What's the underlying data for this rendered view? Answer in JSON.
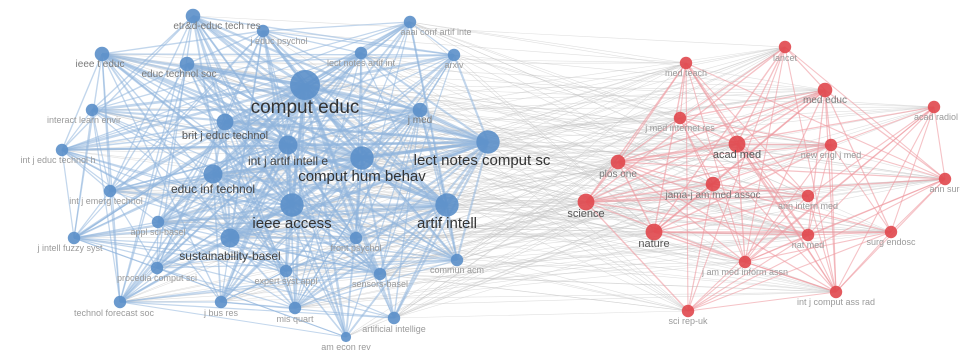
{
  "colors": {
    "blue_node": "#5b8fc9",
    "red_node": "#e0474c",
    "blue_edge": "#8fb4dc",
    "red_edge": "#ee9aa0",
    "gray_edge": "#c4c4c4",
    "label_major": "#333333",
    "label_minor": "#9a9a9a"
  },
  "clusters": [
    {
      "name": "",
      "color": "blue"
    },
    {
      "name": "",
      "color": "red"
    }
  ],
  "nodes": [
    {
      "id": "b1",
      "label": "comput educ",
      "cluster": 0,
      "weight": 10
    },
    {
      "id": "b2",
      "label": "lect notes comput sc",
      "cluster": 0,
      "weight": 7
    },
    {
      "id": "b3",
      "label": "comput hum behav",
      "cluster": 0,
      "weight": 7
    },
    {
      "id": "b4",
      "label": "ieee access",
      "cluster": 0,
      "weight": 7
    },
    {
      "id": "b5",
      "label": "artif intell",
      "cluster": 0,
      "weight": 7
    },
    {
      "id": "b6",
      "label": "int j artif intell e",
      "cluster": 0,
      "weight": 5
    },
    {
      "id": "b7",
      "label": "educ inf technol",
      "cluster": 0,
      "weight": 5
    },
    {
      "id": "b8",
      "label": "sustainability-basel",
      "cluster": 0,
      "weight": 5
    },
    {
      "id": "b9",
      "label": "brit j educ technol",
      "cluster": 0,
      "weight": 4
    },
    {
      "id": "b10",
      "label": "etr&d-educ tech res",
      "cluster": 0,
      "weight": 3
    },
    {
      "id": "b11",
      "label": "j educ psychol",
      "cluster": 0,
      "weight": 2
    },
    {
      "id": "b12",
      "label": "aaai conf artif inte",
      "cluster": 0,
      "weight": 2
    },
    {
      "id": "b13",
      "label": "ieee t educ",
      "cluster": 0,
      "weight": 3
    },
    {
      "id": "b14",
      "label": "educ technol soc",
      "cluster": 0,
      "weight": 3
    },
    {
      "id": "b15",
      "label": "lect notes artif int",
      "cluster": 0,
      "weight": 2
    },
    {
      "id": "b16",
      "label": "arxiv",
      "cluster": 0,
      "weight": 2
    },
    {
      "id": "b17",
      "label": "interact learn envir",
      "cluster": 0,
      "weight": 2
    },
    {
      "id": "b18",
      "label": "j med",
      "cluster": 0,
      "weight": 3
    },
    {
      "id": "b19",
      "label": "int j educ technol h",
      "cluster": 0,
      "weight": 2
    },
    {
      "id": "b20",
      "label": "int j emerg technol",
      "cluster": 0,
      "weight": 2
    },
    {
      "id": "b21",
      "label": "appl sci-basel",
      "cluster": 0,
      "weight": 2
    },
    {
      "id": "b22",
      "label": "j intell fuzzy syst",
      "cluster": 0,
      "weight": 2
    },
    {
      "id": "b23",
      "label": "front psychol",
      "cluster": 0,
      "weight": 2
    },
    {
      "id": "b24",
      "label": "procedia comput sci",
      "cluster": 0,
      "weight": 2
    },
    {
      "id": "b25",
      "label": "expert syst appl",
      "cluster": 0,
      "weight": 2
    },
    {
      "id": "b26",
      "label": "sensors-basel",
      "cluster": 0,
      "weight": 2
    },
    {
      "id": "b27",
      "label": "commun acm",
      "cluster": 0,
      "weight": 2
    },
    {
      "id": "b28",
      "label": "technol forecast soc",
      "cluster": 0,
      "weight": 2
    },
    {
      "id": "b29",
      "label": "j bus res",
      "cluster": 0,
      "weight": 2
    },
    {
      "id": "b30",
      "label": "mis quart",
      "cluster": 0,
      "weight": 2
    },
    {
      "id": "b31",
      "label": "artificial intellige",
      "cluster": 0,
      "weight": 2
    },
    {
      "id": "b32",
      "label": "am econ rev",
      "cluster": 0,
      "weight": 1
    },
    {
      "id": "r1",
      "label": "lancet",
      "cluster": 1,
      "weight": 2
    },
    {
      "id": "r2",
      "label": "med teach",
      "cluster": 1,
      "weight": 2
    },
    {
      "id": "r3",
      "label": "med educ",
      "cluster": 1,
      "weight": 3
    },
    {
      "id": "r4",
      "label": "acad radiol",
      "cluster": 1,
      "weight": 2
    },
    {
      "id": "r5",
      "label": "j med internet res",
      "cluster": 1,
      "weight": 2
    },
    {
      "id": "r6",
      "label": "acad med",
      "cluster": 1,
      "weight": 4
    },
    {
      "id": "r7",
      "label": "new engl j med",
      "cluster": 1,
      "weight": 2
    },
    {
      "id": "r8",
      "label": "plos one",
      "cluster": 1,
      "weight": 3
    },
    {
      "id": "r9",
      "label": "jama-j am med assoc",
      "cluster": 1,
      "weight": 3
    },
    {
      "id": "r10",
      "label": "ann surg",
      "cluster": 1,
      "weight": 2
    },
    {
      "id": "r11",
      "label": "ann intern med",
      "cluster": 1,
      "weight": 2
    },
    {
      "id": "r12",
      "label": "science",
      "cluster": 1,
      "weight": 4
    },
    {
      "id": "r13",
      "label": "nature",
      "cluster": 1,
      "weight": 4
    },
    {
      "id": "r14",
      "label": "nat med",
      "cluster": 1,
      "weight": 2
    },
    {
      "id": "r15",
      "label": "surg endosc",
      "cluster": 1,
      "weight": 2
    },
    {
      "id": "r16",
      "label": "j am med inform assn",
      "cluster": 1,
      "weight": 2
    },
    {
      "id": "r17",
      "label": "int j comput ass rad",
      "cluster": 1,
      "weight": 2
    },
    {
      "id": "r18",
      "label": "sci rep-uk",
      "cluster": 1,
      "weight": 2
    }
  ]
}
